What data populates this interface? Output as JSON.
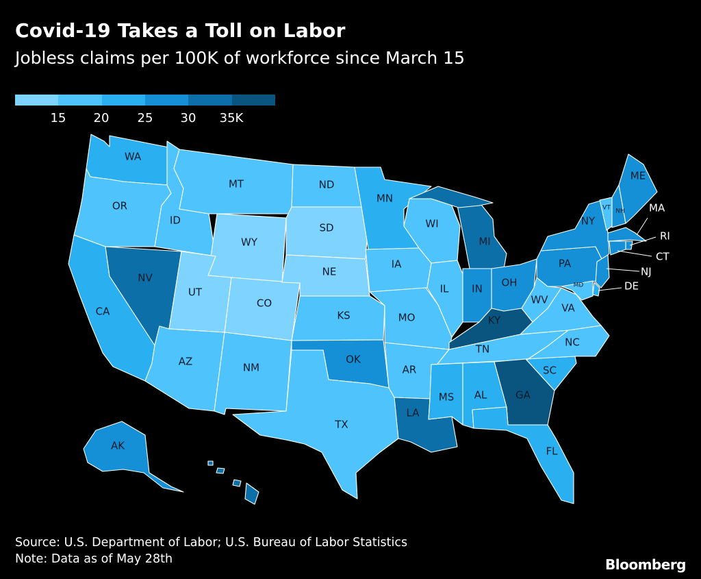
{
  "title": "Covid-19 Takes a Toll on Labor",
  "subtitle": "Jobless claims per 100K of workforce since March 15",
  "legend": {
    "colors": [
      "#7fd3ff",
      "#4fc3fb",
      "#2ab0f0",
      "#1590d6",
      "#0d6fa8",
      "#0a5580"
    ],
    "ticks": [
      "15",
      "20",
      "25",
      "30",
      "35K"
    ],
    "tick_values": [
      15,
      20,
      25,
      30,
      35
    ]
  },
  "states": [
    {
      "abbr": "WA",
      "bin": 2
    },
    {
      "abbr": "OR",
      "bin": 1
    },
    {
      "abbr": "CA",
      "bin": 2
    },
    {
      "abbr": "ID",
      "bin": 1
    },
    {
      "abbr": "NV",
      "bin": 4
    },
    {
      "abbr": "MT",
      "bin": 1
    },
    {
      "abbr": "WY",
      "bin": 0
    },
    {
      "abbr": "UT",
      "bin": 0
    },
    {
      "abbr": "AZ",
      "bin": 1
    },
    {
      "abbr": "CO",
      "bin": 0
    },
    {
      "abbr": "NM",
      "bin": 1
    },
    {
      "abbr": "ND",
      "bin": 1
    },
    {
      "abbr": "SD",
      "bin": 0
    },
    {
      "abbr": "NE",
      "bin": 0
    },
    {
      "abbr": "KS",
      "bin": 1
    },
    {
      "abbr": "OK",
      "bin": 3
    },
    {
      "abbr": "TX",
      "bin": 1
    },
    {
      "abbr": "MN",
      "bin": 2
    },
    {
      "abbr": "IA",
      "bin": 1
    },
    {
      "abbr": "MO",
      "bin": 1
    },
    {
      "abbr": "AR",
      "bin": 1
    },
    {
      "abbr": "LA",
      "bin": 4
    },
    {
      "abbr": "WI",
      "bin": 1
    },
    {
      "abbr": "IL",
      "bin": 1
    },
    {
      "abbr": "MI",
      "bin": 4
    },
    {
      "abbr": "IN",
      "bin": 3
    },
    {
      "abbr": "OH",
      "bin": 3
    },
    {
      "abbr": "KY",
      "bin": 5
    },
    {
      "abbr": "TN",
      "bin": 1
    },
    {
      "abbr": "MS",
      "bin": 2
    },
    {
      "abbr": "AL",
      "bin": 2
    },
    {
      "abbr": "GA",
      "bin": 5
    },
    {
      "abbr": "FL",
      "bin": 2
    },
    {
      "abbr": "SC",
      "bin": 2
    },
    {
      "abbr": "NC",
      "bin": 1
    },
    {
      "abbr": "VA",
      "bin": 1
    },
    {
      "abbr": "WV",
      "bin": 1
    },
    {
      "abbr": "PA",
      "bin": 3
    },
    {
      "abbr": "NY",
      "bin": 3
    },
    {
      "abbr": "VT",
      "bin": 1
    },
    {
      "abbr": "NH",
      "bin": 3
    },
    {
      "abbr": "ME",
      "bin": 3
    },
    {
      "abbr": "MA",
      "bin": 3
    },
    {
      "abbr": "RI",
      "bin": 3
    },
    {
      "abbr": "CT",
      "bin": 3
    },
    {
      "abbr": "NJ",
      "bin": 3
    },
    {
      "abbr": "DE",
      "bin": 2
    },
    {
      "abbr": "MD",
      "bin": 1
    },
    {
      "abbr": "AK",
      "bin": 3
    },
    {
      "abbr": "HI",
      "bin": 4
    }
  ],
  "source": "Source: U.S. Department of Labor; U.S. Bureau of Labor Statistics",
  "note": "Note: Data as of May 28th",
  "brand": "Bloomberg"
}
